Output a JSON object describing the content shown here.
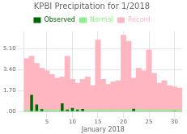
{
  "chart_data": {
    "type": "bar",
    "title": "KPBI Precipitation for 1/2018",
    "xlabel": "January 2018",
    "categories": [
      null,
      null,
      null,
      null,
      "5",
      null,
      null,
      null,
      null,
      "10",
      null,
      null,
      null,
      null,
      "15",
      null,
      null,
      null,
      null,
      "20",
      null,
      null,
      null,
      null,
      "25",
      null,
      null,
      null,
      null,
      "30",
      null
    ],
    "series": [
      {
        "name": "Observed",
        "color": "#006400",
        "values": [
          0.0,
          1.35,
          0.55,
          0.18,
          0.0,
          0.0,
          0.0,
          0.65,
          0.15,
          0.28,
          0.15,
          0.2,
          0.0,
          0.0,
          0.0,
          0.0,
          0.0,
          0.0,
          0.0,
          0.0,
          0.0,
          0.22,
          0.0,
          0.0,
          0.0,
          0.0,
          0.0,
          0.0,
          0.0,
          0.02,
          0.0
        ]
      },
      {
        "name": "Normal",
        "color": "#90EE90",
        "values": [
          0.13,
          0.13,
          0.13,
          0.13,
          0.13,
          0.13,
          0.13,
          0.13,
          0.13,
          0.13,
          0.13,
          0.13,
          0.13,
          0.13,
          0.13,
          0.13,
          0.13,
          0.13,
          0.13,
          0.13,
          0.13,
          0.13,
          0.13,
          0.13,
          0.13,
          0.13,
          0.13,
          0.13,
          0.13,
          0.13,
          0.13
        ]
      },
      {
        "name": "Record",
        "color": "#FFB6C1",
        "values": [
          4.3,
          4.5,
          3.9,
          3.5,
          3.3,
          3.0,
          2.7,
          2.8,
          4.5,
          2.6,
          2.3,
          2.6,
          2.8,
          2.1,
          5.8,
          2.6,
          2.2,
          2.4,
          2.5,
          6.2,
          5.7,
          2.7,
          3.5,
          3.3,
          5.0,
          3.1,
          2.3,
          2.5,
          2.1,
          2.0,
          1.9
        ]
      }
    ],
    "ylim": [
      0,
      6.5
    ],
    "yticks": [
      {
        "value": 0.0,
        "label": ".00"
      },
      {
        "value": 1.7,
        "label": "1.70"
      },
      {
        "value": 3.4,
        "label": "3.40"
      },
      {
        "value": 5.1,
        "label": "5.10"
      }
    ],
    "grid": true,
    "legend": "top"
  }
}
